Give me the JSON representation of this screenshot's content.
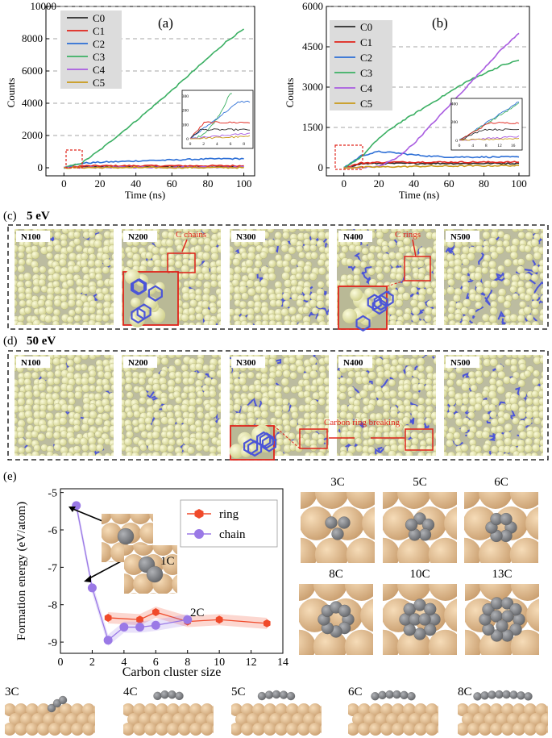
{
  "colors": {
    "C0": "#2b2b2b",
    "C1": "#e0241b",
    "C2": "#2d6fd6",
    "C3": "#3cb064",
    "C4": "#a95ce0",
    "C5": "#c99a1a",
    "ring": "#f04a2a",
    "chain": "#9a79e6",
    "atom_small": "#efefb4",
    "atom_bond": "#4b55d8",
    "sub_atom": "#e8c59a",
    "c_atom": "#8a8c90"
  },
  "panel_a": {
    "label": "(a)",
    "ylabel": "Counts",
    "xlabel": "Time (ns)",
    "yticks": [
      "0",
      "2000",
      "4000",
      "6000",
      "8000",
      "10000"
    ],
    "xticks": [
      "0",
      "20",
      "40",
      "60",
      "80",
      "100"
    ],
    "legend": [
      "C0",
      "C1",
      "C2",
      "C3",
      "C4",
      "C5"
    ],
    "inset_yticks": [
      "0",
      "100",
      "200",
      "300"
    ],
    "inset_xticks": [
      "0",
      "2",
      "4",
      "6",
      "8"
    ]
  },
  "panel_b": {
    "label": "(b)",
    "ylabel": "Counts",
    "xlabel": "Time (ns)",
    "yticks": [
      "0",
      "1500",
      "3000",
      "4500",
      "6000"
    ],
    "xticks": [
      "0",
      "20",
      "40",
      "60",
      "80",
      "100"
    ],
    "legend": [
      "C0",
      "C1",
      "C2",
      "C3",
      "C4",
      "C5"
    ],
    "inset_yticks": [
      "0",
      "200",
      "400"
    ],
    "inset_xticks": [
      "0",
      "4",
      "8",
      "12",
      "16"
    ]
  },
  "chart_data": [
    {
      "type": "line",
      "id": "a",
      "x": [
        0,
        10,
        20,
        30,
        40,
        50,
        60,
        70,
        80,
        90,
        100
      ],
      "xlim": [
        -10,
        106
      ],
      "ylim": [
        -500,
        10000
      ],
      "series": [
        {
          "name": "C0",
          "values": [
            0,
            60,
            60,
            60,
            60,
            60,
            60,
            60,
            60,
            60,
            60
          ]
        },
        {
          "name": "C1",
          "values": [
            0,
            110,
            120,
            120,
            120,
            120,
            120,
            120,
            120,
            120,
            120
          ]
        },
        {
          "name": "C2",
          "values": [
            0,
            280,
            340,
            380,
            420,
            460,
            480,
            520,
            540,
            560,
            560
          ]
        },
        {
          "name": "C3",
          "values": [
            0,
            300,
            1100,
            2000,
            2900,
            3850,
            4800,
            5800,
            6800,
            7800,
            8600
          ]
        },
        {
          "name": "C4",
          "values": [
            0,
            10,
            20,
            20,
            30,
            30,
            30,
            40,
            40,
            40,
            50
          ]
        },
        {
          "name": "C5",
          "values": [
            0,
            10,
            10,
            10,
            10,
            10,
            10,
            10,
            10,
            10,
            10
          ]
        }
      ]
    },
    {
      "type": "line",
      "id": "b",
      "x": [
        0,
        10,
        20,
        30,
        40,
        50,
        60,
        70,
        80,
        90,
        100
      ],
      "xlim": [
        -10,
        106
      ],
      "ylim": [
        -300,
        6000
      ],
      "series": [
        {
          "name": "C0",
          "values": [
            0,
            150,
            160,
            160,
            160,
            160,
            160,
            160,
            160,
            160,
            160
          ]
        },
        {
          "name": "C1",
          "values": [
            0,
            180,
            200,
            210,
            210,
            210,
            210,
            210,
            210,
            210,
            210
          ]
        },
        {
          "name": "C2",
          "values": [
            0,
            450,
            600,
            550,
            480,
            430,
            400,
            400,
            400,
            400,
            400
          ]
        },
        {
          "name": "C3",
          "values": [
            0,
            400,
            1100,
            1600,
            2000,
            2400,
            2800,
            3200,
            3500,
            3800,
            4000
          ]
        },
        {
          "name": "C4",
          "values": [
            0,
            10,
            50,
            350,
            900,
            1600,
            2300,
            3000,
            3700,
            4400,
            5000
          ]
        },
        {
          "name": "C5",
          "values": [
            0,
            20,
            30,
            40,
            50,
            60,
            60,
            70,
            70,
            80,
            80
          ]
        }
      ]
    },
    {
      "type": "line",
      "id": "e",
      "xlabel": "Carbon cluster size",
      "ylabel": "Formation energy (eV/atom)",
      "xlim": [
        0,
        14
      ],
      "ylim": [
        -9.3,
        -4.9
      ],
      "xticks": [
        "0",
        "2",
        "4",
        "6",
        "8",
        "10",
        "12",
        "14"
      ],
      "yticks": [
        "-9",
        "-8",
        "-7",
        "-6",
        "-5"
      ],
      "series": [
        {
          "name": "ring",
          "x": [
            3,
            5,
            6,
            8,
            10,
            13
          ],
          "values": [
            -8.35,
            -8.4,
            -8.2,
            -8.45,
            -8.4,
            -8.5
          ]
        },
        {
          "name": "chain",
          "x": [
            1,
            2,
            3,
            4,
            5,
            6,
            8
          ],
          "values": [
            -5.35,
            -7.55,
            -8.95,
            -8.6,
            -8.6,
            -8.55,
            -8.4
          ]
        }
      ]
    }
  ],
  "panel_c": {
    "label": "(c)",
    "energy": "5 eV",
    "tiles": [
      "N100",
      "N200",
      "N300",
      "N400",
      "N500"
    ],
    "annotation": "C chains",
    "annotation2": "C rings"
  },
  "panel_d": {
    "label": "(d)",
    "energy": "50 eV",
    "tiles": [
      "N100",
      "N200",
      "N300",
      "N400",
      "N500"
    ],
    "annotation": "Carbon ring breaking"
  },
  "panel_e": {
    "label": "(e)",
    "inset_labels": [
      "1C",
      "2C"
    ],
    "legend": [
      "ring",
      "chain"
    ],
    "top_views": [
      "3C",
      "5C",
      "6C",
      "8C",
      "10C",
      "13C"
    ],
    "side_views": [
      "3C",
      "4C",
      "5C",
      "6C",
      "8C"
    ]
  }
}
